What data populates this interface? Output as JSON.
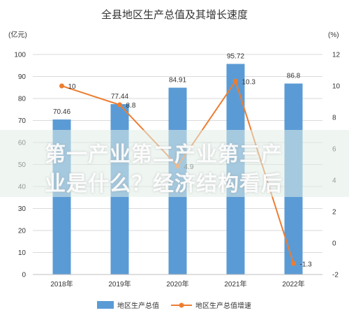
{
  "chart_data": {
    "type": "bar+line",
    "title": "全县地区生产总值及其增长速度",
    "y_left_unit": "(亿元)",
    "y_right_unit": "(%)",
    "categories": [
      "2018年",
      "2019年",
      "2020年",
      "2021年",
      "2022年"
    ],
    "y_left_ticks": [
      "0",
      "10",
      "20",
      "30",
      "40",
      "50",
      "60",
      "70",
      "80",
      "90",
      "100"
    ],
    "y_right_ticks": [
      "-2",
      "0",
      "2",
      "4",
      "6",
      "8",
      "10",
      "12"
    ],
    "ylim_left": [
      0,
      100
    ],
    "ylim_right": [
      -2,
      12
    ],
    "series": [
      {
        "name": "地区生产总值",
        "kind": "bar",
        "axis": "left",
        "color": "#5b9bd5",
        "values": [
          70.46,
          77.44,
          84.91,
          95.72,
          86.8
        ],
        "labels": [
          "70.46",
          "77.44",
          "84.91",
          "95.72",
          "86.8"
        ]
      },
      {
        "name": "地区生产总值增速",
        "kind": "line",
        "axis": "right",
        "color": "#ed7d31",
        "values": [
          10,
          8.8,
          4.9,
          10.3,
          -1.3
        ],
        "labels": [
          "10",
          "8.8",
          "4.9",
          "10.3",
          "-1.3"
        ]
      }
    ],
    "grid": true,
    "legend_position": "bottom"
  },
  "overlay": {
    "line1": "第一产业第二产业第三产",
    "line2": "业是什么？经济结构看后"
  }
}
